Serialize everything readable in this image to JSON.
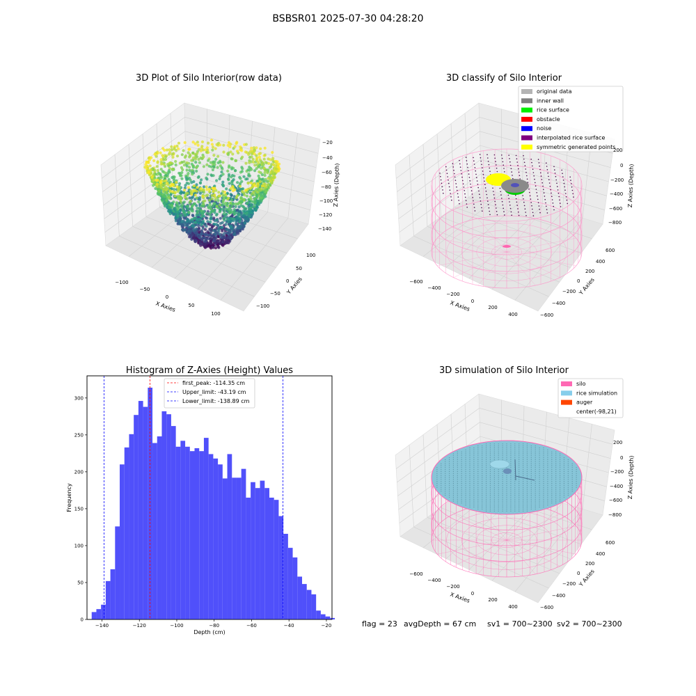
{
  "suptitle": "BSBSR01 2025-07-30 04:28:20",
  "status_line": {
    "flag": "flag = 23",
    "avg_depth": "avgDepth = 67 cm",
    "sv1": "sv1 = 700~2300",
    "sv2": "sv2 = 700~2300"
  },
  "chart_data": [
    {
      "type": "scatter",
      "subtype": "3d-scatter",
      "title": "3D Plot of Silo Interior(row data)",
      "xlabel": "X Axies",
      "ylabel": "Y Axies",
      "zlabel": "Z Axies (Depth)",
      "x_ticks": [
        "−100",
        "−50",
        "0",
        "50",
        "100"
      ],
      "y_ticks": [
        "100",
        "50",
        "0",
        "−50",
        "−100"
      ],
      "z_ticks": [
        "−20",
        "−40",
        "−60",
        "−80",
        "−100",
        "−120",
        "−140"
      ],
      "xlim": [
        -130,
        130
      ],
      "ylim": [
        -120,
        120
      ],
      "zlim": [
        -150,
        -15
      ],
      "colormap": "viridis",
      "note_shape": "bowl-shaped point cloud, depth from about −145 (center bottom) to −20 (rim)"
    },
    {
      "type": "scatter",
      "subtype": "3d-classification",
      "title": "3D classify of Silo Interior",
      "xlabel": "X Axies",
      "ylabel": "Y Axies",
      "zlabel": "Z Axies (Depth)",
      "x_ticks": [
        "−600",
        "−400",
        "−200",
        "0",
        "200",
        "400"
      ],
      "y_ticks": [
        "600",
        "400",
        "200",
        "0",
        "−200",
        "−400",
        "−600"
      ],
      "z_ticks": [
        "200",
        "0",
        "−200",
        "−400",
        "−600",
        "−800"
      ],
      "legend": [
        {
          "label": "original data",
          "color": "#b4b4b4"
        },
        {
          "label": "inner wall",
          "color": "#808080"
        },
        {
          "label": "rice surface",
          "color": "#00ee00"
        },
        {
          "label": "obstacle",
          "color": "#ff0000"
        },
        {
          "label": "noise",
          "color": "#0000ff"
        },
        {
          "label": "interpolated rice surface",
          "color": "#800080"
        },
        {
          "label": "symmetric generated points",
          "color": "#ffff00"
        }
      ],
      "legend_position": "top-right"
    },
    {
      "type": "bar",
      "subtype": "histogram",
      "title": "Histogram of Z-Axies (Height) Values",
      "xlabel": "Depth (cm)",
      "ylabel": "Frequency",
      "xlim": [
        -148,
        -17
      ],
      "ylim": [
        0,
        330
      ],
      "x_ticks": [
        -140,
        -120,
        -100,
        -80,
        -60,
        -40,
        -20
      ],
      "y_ticks": [
        0,
        50,
        100,
        150,
        200,
        250,
        300
      ],
      "bin_start": -145.5,
      "bin_width": 2.5,
      "values": [
        10,
        14,
        20,
        52,
        68,
        126,
        210,
        233,
        251,
        277,
        296,
        288,
        314,
        239,
        248,
        282,
        278,
        262,
        234,
        242,
        234,
        228,
        232,
        228,
        246,
        224,
        218,
        210,
        191,
        224,
        192,
        192,
        204,
        165,
        186,
        178,
        188,
        178,
        165,
        162,
        140,
        116,
        97,
        84,
        58,
        48,
        40,
        34,
        12,
        7,
        4,
        2
      ],
      "bar_color": "#5050fa",
      "vlines": [
        {
          "label": "first_peak: -114.35 cm",
          "x": -114.35,
          "color": "#ff0000"
        },
        {
          "label": "Upper_limit: -43.19 cm",
          "x": -43.19,
          "color": "#0000ff"
        },
        {
          "label": "Lower_limit: -138.89 cm",
          "x": -138.89,
          "color": "#0000ff"
        }
      ],
      "legend_position": "top-center"
    },
    {
      "type": "scatter",
      "subtype": "3d-simulation",
      "title": "3D simulation of Silo Interior",
      "xlabel": "X Axies",
      "ylabel": "Y Axies",
      "zlabel": "Z Axies (Depth)",
      "x_ticks": [
        "−600",
        "−400",
        "−200",
        "0",
        "200",
        "400"
      ],
      "y_ticks": [
        "600",
        "400",
        "200",
        "0",
        "−200",
        "−400",
        "−600"
      ],
      "z_ticks": [
        "200",
        "0",
        "−200",
        "−400",
        "−600",
        "−800"
      ],
      "legend": [
        {
          "label": "silo",
          "color": "#ff69b4"
        },
        {
          "label": "rice simulation",
          "color": "#87ceeb"
        },
        {
          "label": "auger",
          "color": "#ff4500"
        },
        {
          "label": "center(-98,21)",
          "color": "#ffffff"
        }
      ],
      "legend_position": "top-right"
    }
  ]
}
